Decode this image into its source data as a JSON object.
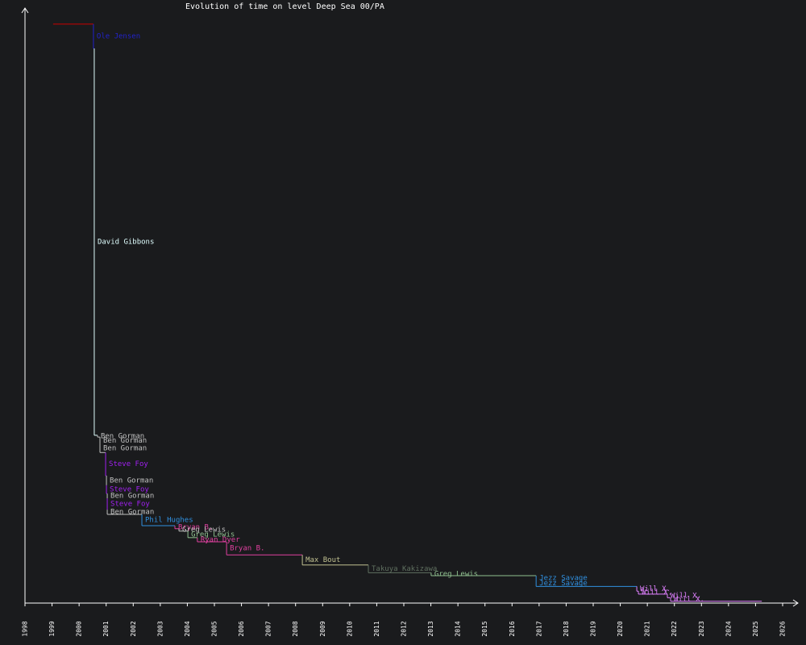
{
  "chart_data": {
    "type": "step",
    "title": "Evolution of time on level Deep Sea 00/PA",
    "x": [
      1999.04,
      2000.53,
      2000.56,
      2000.68,
      2000.77,
      2000.77,
      2000.98,
      2001.01,
      2001.01,
      2001.04,
      2001.04,
      2001.04,
      2002.32,
      2003.54,
      2003.69,
      2004.02,
      2004.37,
      2005.45,
      2008.25,
      2010.69,
      2013.01,
      2016.89,
      2016.89,
      2020.61,
      2020.67,
      2021.74,
      2021.86
    ],
    "x_end": 2025.23,
    "values": [
      97.3,
      93.2,
      28.2,
      27.9,
      26.7,
      25.3,
      21.4,
      19.8,
      18.4,
      17.6,
      15.7,
      14.9,
      13.0,
      12.5,
      12.1,
      11.0,
      10.3,
      8.1,
      6.4,
      5.1,
      4.6,
      3.8,
      2.8,
      2.0,
      1.5,
      0.9,
      0.3
    ],
    "names": [
      null,
      "Ole Jensen",
      "David Gibbons",
      "Ben Gorman",
      "Ben Gorman",
      "Ben Gorman",
      "Steve Foy",
      "Ben Gorman",
      "Steve Foy",
      "Ben Gorman",
      "Steve Foy",
      "Ben Gorman",
      "Phil Hughes",
      "Bryan B.",
      "Greg Lewis",
      "Greg Lewis",
      "Ryan Dyer",
      "Bryan B.",
      "Max Bout",
      "Takuya Kakizawa",
      "Greg Lewis",
      "Jezz Savage",
      "Jezz Savage",
      "Will X.",
      "Will X.",
      "Will X.",
      "Will X."
    ],
    "colors": [
      "#cc0000",
      "#2222cc",
      "#e0ffff",
      "#c0c0c0",
      "#c0c0c0",
      "#c0c0c0",
      "#a020f0",
      "#c0c0c0",
      "#a020f0",
      "#c0c0c0",
      "#a020f0",
      "#c0c0c0",
      "#3090e0",
      "#e040a0",
      "#c0c0c0",
      "#90c090",
      "#e040a0",
      "#e040a0",
      "#c0c090",
      "#607060",
      "#90c090",
      "#3090e0",
      "#3090e0",
      "#e080ff",
      "#e080ff",
      "#e080ff",
      "#e080ff"
    ],
    "xlim": [
      1998,
      2026
    ],
    "xticks": [
      1998,
      1999,
      2000,
      2001,
      2002,
      2003,
      2004,
      2005,
      2006,
      2007,
      2008,
      2009,
      2010,
      2011,
      2012,
      2013,
      2014,
      2015,
      2016,
      2017,
      2018,
      2019,
      2020,
      2021,
      2022,
      2023,
      2024,
      2025,
      2026
    ],
    "ylim": [
      0,
      100
    ]
  }
}
